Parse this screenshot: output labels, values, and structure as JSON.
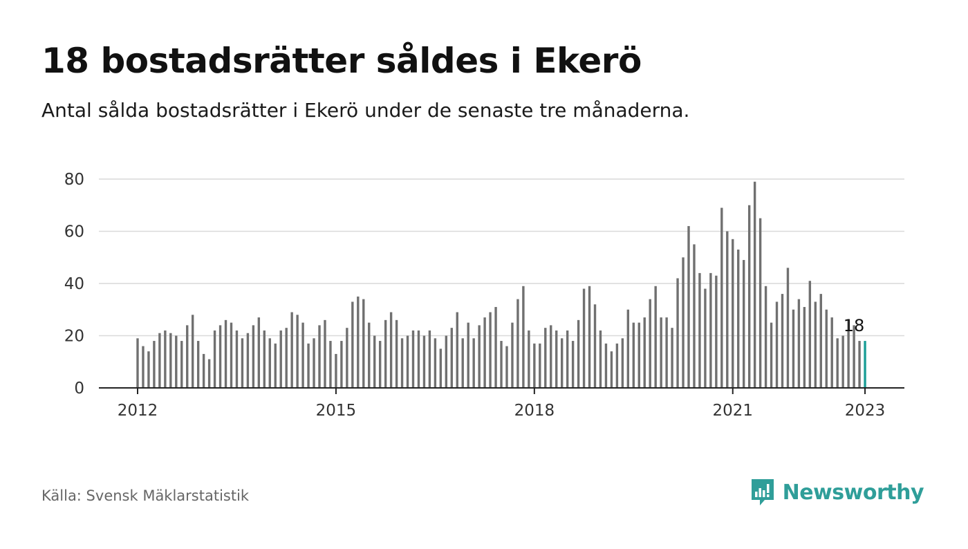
{
  "title": "18 bostadsrätter såldes i Ekerö",
  "subtitle": "Antal sålda bostadsrätter i Ekerö under de senaste tre månaderna.",
  "source": "Källa: Svensk Mäklarstatistik",
  "brand": {
    "name": "Newsworthy",
    "icon": "newsworthy-logo-icon",
    "color": "#2f9e99"
  },
  "colors": {
    "bar": "#707070",
    "highlight": "#1a9e96",
    "grid": "#d9d9d9",
    "axis": "#222222"
  },
  "chart_data": {
    "type": "bar",
    "start": "2012-01",
    "xticks": [
      "2012",
      "2015",
      "2018",
      "2021",
      "2023"
    ],
    "yticks": [
      0,
      20,
      40,
      60,
      80
    ],
    "ylim": [
      0,
      80
    ],
    "grid": true,
    "highlight_last": true,
    "last_label": "18",
    "values": [
      19,
      16,
      14,
      18,
      21,
      22,
      21,
      20,
      18,
      24,
      28,
      18,
      13,
      11,
      22,
      24,
      26,
      25,
      22,
      19,
      21,
      24,
      27,
      22,
      19,
      17,
      22,
      23,
      29,
      28,
      25,
      17,
      19,
      24,
      26,
      18,
      13,
      18,
      23,
      33,
      35,
      34,
      25,
      20,
      18,
      26,
      29,
      26,
      19,
      20,
      22,
      22,
      20,
      22,
      19,
      15,
      20,
      23,
      29,
      19,
      25,
      19,
      24,
      27,
      29,
      31,
      18,
      16,
      25,
      34,
      39,
      22,
      17,
      17,
      23,
      24,
      22,
      19,
      22,
      18,
      26,
      38,
      39,
      32,
      22,
      17,
      14,
      17,
      19,
      30,
      25,
      25,
      27,
      34,
      39,
      27,
      27,
      23,
      42,
      50,
      62,
      55,
      44,
      38,
      44,
      43,
      69,
      60,
      57,
      53,
      49,
      70,
      79,
      65,
      39,
      25,
      33,
      36,
      46,
      30,
      34,
      31,
      41,
      33,
      36,
      30,
      27,
      19,
      20,
      26,
      24,
      18,
      18
    ]
  }
}
